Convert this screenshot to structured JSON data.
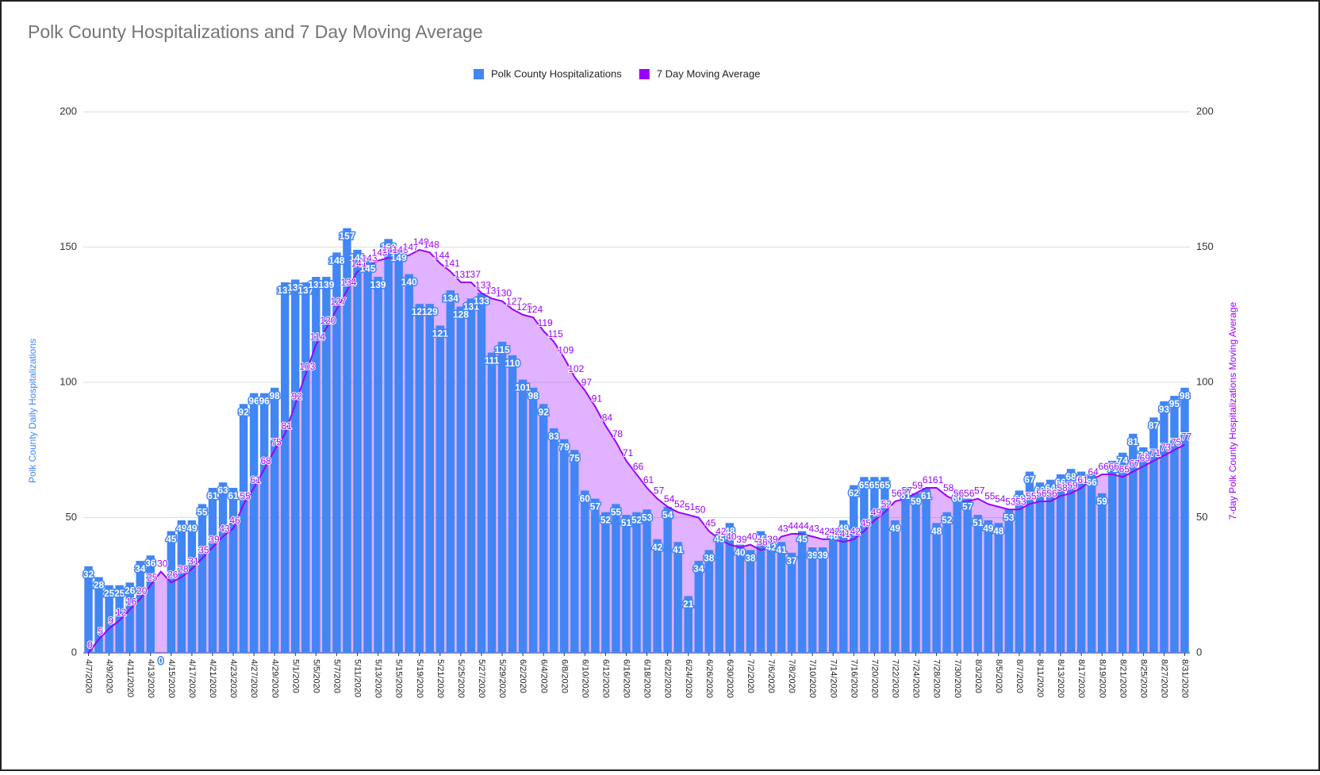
{
  "chart_data": {
    "type": "bar_line",
    "title": "Polk County Hospitalizations and 7 Day Moving Average",
    "y_label": "Polk County Daily Hospitalizations",
    "y2_label": "7-day Polk County Hospitalizations Moving Average",
    "categories": [
      "4/7/2020",
      null,
      "4/9/2020",
      null,
      "4/11/2020",
      null,
      "4/13/2020",
      null,
      "4/15/2020",
      null,
      "4/17/2020",
      null,
      "4/21/2020",
      null,
      "4/23/2020",
      null,
      "4/27/2020",
      null,
      "4/29/2020",
      null,
      "5/1/2020",
      null,
      "5/5/2020",
      null,
      "5/7/2020",
      null,
      "5/11/2020",
      null,
      "5/13/2020",
      null,
      "5/15/2020",
      null,
      "5/19/2020",
      null,
      "5/21/2020",
      null,
      "5/25/2020",
      null,
      "5/27/2020",
      null,
      "5/29/2020",
      null,
      "6/2/2020",
      null,
      "6/4/2020",
      null,
      "6/8/2020",
      null,
      "6/10/2020",
      null,
      "6/12/2020",
      null,
      "6/16/2020",
      null,
      "6/18/2020",
      null,
      "6/22/2020",
      null,
      "6/24/2020",
      null,
      "6/26/2020",
      null,
      "6/30/2020",
      null,
      "7/2/2020",
      null,
      "7/6/2020",
      null,
      "7/8/2020",
      null,
      "7/10/2020",
      null,
      "7/14/2020",
      null,
      "7/16/2020",
      null,
      "7/20/2020",
      null,
      "7/22/2020",
      null,
      "7/24/2020",
      null,
      "7/28/2020",
      null,
      "7/30/2020",
      null,
      "8/3/2020",
      null,
      "8/5/2020",
      null,
      "8/7/2020",
      null,
      "8/11/2020",
      null,
      "8/13/2020",
      null,
      "8/17/2020",
      null,
      "8/19/2020",
      null,
      "8/21/2020",
      null,
      "8/25/2020",
      null,
      "8/27/2020",
      null,
      "8/31/2020"
    ],
    "series": [
      {
        "name": "Polk County Hospitalizations",
        "color": "#4285f4",
        "axis": "y",
        "values": [
          32,
          28,
          25,
          25,
          26,
          34,
          36,
          0,
          45,
          49,
          49,
          55,
          61,
          63,
          61,
          92,
          96,
          96,
          98,
          137,
          138,
          137,
          139,
          139,
          148,
          157,
          149,
          145,
          139,
          153,
          149,
          140,
          129,
          129,
          121,
          134,
          128,
          131,
          133,
          111,
          115,
          110,
          101,
          98,
          92,
          83,
          79,
          75,
          60,
          57,
          52,
          55,
          51,
          52,
          53,
          42,
          54,
          41,
          21,
          34,
          38,
          45,
          48,
          40,
          38,
          45,
          42,
          41,
          37,
          45,
          39,
          39,
          46,
          49,
          62,
          65,
          65,
          65,
          49,
          61,
          59,
          61,
          48,
          52,
          60,
          57,
          51,
          49,
          48,
          53,
          60,
          67,
          63,
          64,
          66,
          68,
          67,
          66,
          59,
          71,
          74,
          81,
          76,
          87,
          93,
          95,
          98
        ]
      },
      {
        "name": "7 Day Moving Average",
        "color": "#9900ff",
        "axis": "y2",
        "values": [
          0,
          5,
          9,
          12,
          16,
          20,
          25,
          30,
          26,
          28,
          31,
          35,
          39,
          43,
          46,
          55,
          61,
          68,
          75,
          81,
          92,
          103,
          114,
          120,
          127,
          134,
          141,
          143,
          145,
          146,
          146,
          147,
          149,
          148,
          144,
          141,
          137,
          137,
          133,
          131,
          130,
          127,
          125,
          124,
          119,
          115,
          109,
          102,
          97,
          91,
          84,
          78,
          71,
          66,
          61,
          57,
          54,
          52,
          51,
          50,
          45,
          42,
          40,
          39,
          40,
          38,
          39,
          43,
          44,
          44,
          43,
          42,
          42,
          41,
          42,
          45,
          49,
          52,
          56,
          57,
          59,
          61,
          61,
          58,
          56,
          56,
          57,
          55,
          54,
          53,
          53,
          55,
          56,
          56,
          58,
          59,
          61,
          64,
          66,
          66,
          65,
          67,
          69,
          71,
          73,
          75,
          77
        ]
      }
    ],
    "ylim": [
      0,
      200
    ],
    "yticks": [
      0,
      50,
      100,
      150,
      200
    ],
    "y2lim": [
      0,
      200
    ],
    "y2ticks": [
      0,
      50,
      100,
      150,
      200
    ],
    "grid": true,
    "legend": "top"
  }
}
